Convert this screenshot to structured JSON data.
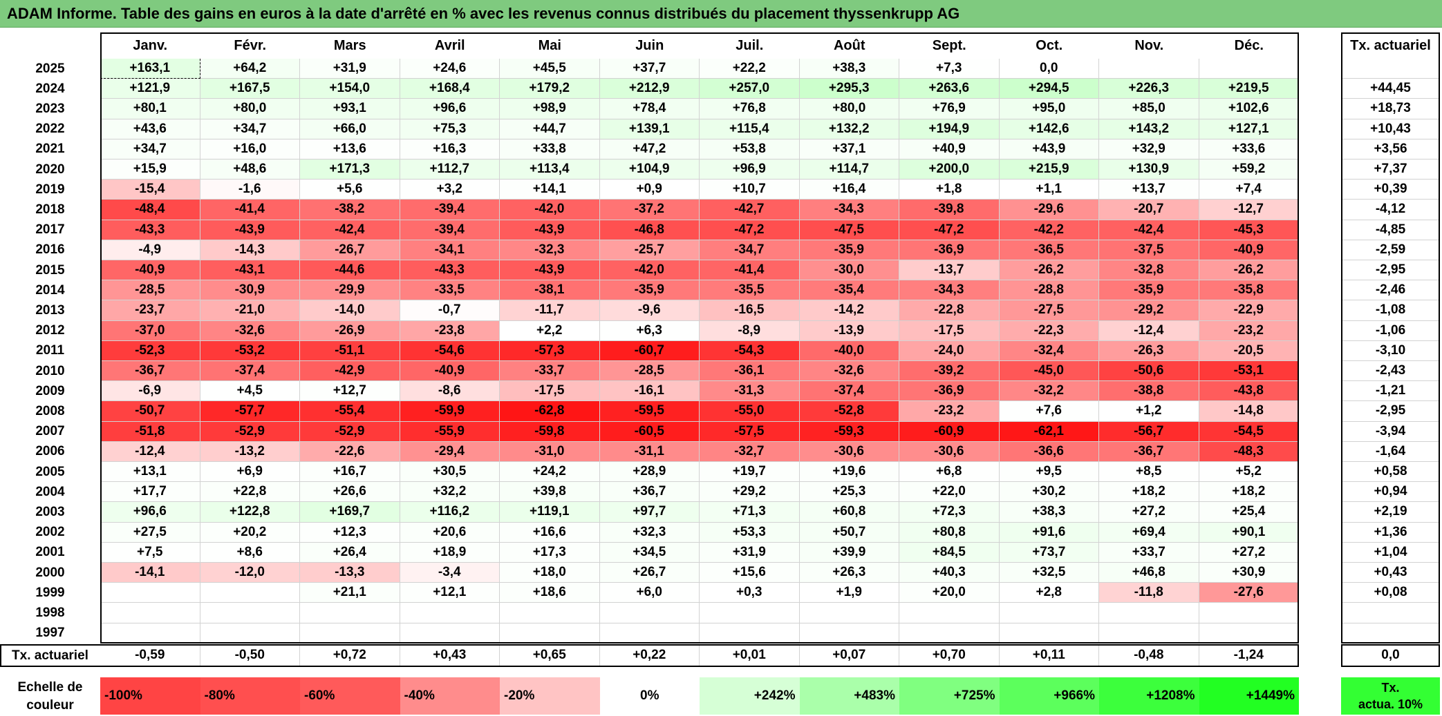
{
  "title": "ADAM Informe. Table des gains en euros à la date d'arrêté en % avec les revenus connus distribués du placement thyssenkrupp AG",
  "months": [
    "Janv.",
    "Févr.",
    "Mars",
    "Avril",
    "Mai",
    "Juin",
    "Juil.",
    "Août",
    "Sept.",
    "Oct.",
    "Nov.",
    "Déc."
  ],
  "tx_header": "Tx. actuariel",
  "rows": [
    {
      "year": "2025",
      "values": [
        "+163,1",
        "+64,2",
        "+31,9",
        "+24,6",
        "+45,5",
        "+37,7",
        "+22,2",
        "+38,3",
        "+7,3",
        "0,0",
        "",
        ""
      ],
      "tx": ""
    },
    {
      "year": "2024",
      "values": [
        "+121,9",
        "+167,5",
        "+154,0",
        "+168,4",
        "+179,2",
        "+212,9",
        "+257,0",
        "+295,3",
        "+263,6",
        "+294,5",
        "+226,3",
        "+219,5"
      ],
      "tx": "+44,45"
    },
    {
      "year": "2023",
      "values": [
        "+80,1",
        "+80,0",
        "+93,1",
        "+96,6",
        "+98,9",
        "+78,4",
        "+76,8",
        "+80,0",
        "+76,9",
        "+95,0",
        "+85,0",
        "+102,6"
      ],
      "tx": "+18,73"
    },
    {
      "year": "2022",
      "values": [
        "+43,6",
        "+34,7",
        "+66,0",
        "+75,3",
        "+44,7",
        "+139,1",
        "+115,4",
        "+132,2",
        "+194,9",
        "+142,6",
        "+143,2",
        "+127,1"
      ],
      "tx": "+10,43"
    },
    {
      "year": "2021",
      "values": [
        "+34,7",
        "+16,0",
        "+13,6",
        "+16,3",
        "+33,8",
        "+47,2",
        "+53,8",
        "+37,1",
        "+40,9",
        "+43,9",
        "+32,9",
        "+33,6"
      ],
      "tx": "+3,56"
    },
    {
      "year": "2020",
      "values": [
        "+15,9",
        "+48,6",
        "+171,3",
        "+112,7",
        "+113,4",
        "+104,9",
        "+96,9",
        "+114,7",
        "+200,0",
        "+215,9",
        "+130,9",
        "+59,2"
      ],
      "tx": "+7,37"
    },
    {
      "year": "2019",
      "values": [
        "-15,4",
        "-1,6",
        "+5,6",
        "+3,2",
        "+14,1",
        "+0,9",
        "+10,7",
        "+16,4",
        "+1,8",
        "+1,1",
        "+13,7",
        "+7,4"
      ],
      "tx": "+0,39"
    },
    {
      "year": "2018",
      "values": [
        "-48,4",
        "-41,4",
        "-38,2",
        "-39,4",
        "-42,0",
        "-37,2",
        "-42,7",
        "-34,3",
        "-39,8",
        "-29,6",
        "-20,7",
        "-12,7"
      ],
      "tx": "-4,12"
    },
    {
      "year": "2017",
      "values": [
        "-43,3",
        "-43,9",
        "-42,4",
        "-39,4",
        "-43,9",
        "-46,8",
        "-47,2",
        "-47,5",
        "-47,2",
        "-42,2",
        "-42,4",
        "-45,3"
      ],
      "tx": "-4,85"
    },
    {
      "year": "2016",
      "values": [
        "-4,9",
        "-14,3",
        "-26,7",
        "-34,1",
        "-32,3",
        "-25,7",
        "-34,7",
        "-35,9",
        "-36,9",
        "-36,5",
        "-37,5",
        "-40,9"
      ],
      "tx": "-2,59"
    },
    {
      "year": "2015",
      "values": [
        "-40,9",
        "-43,1",
        "-44,6",
        "-43,3",
        "-43,9",
        "-42,0",
        "-41,4",
        "-30,0",
        "-13,7",
        "-26,2",
        "-32,8",
        "-26,2"
      ],
      "tx": "-2,95"
    },
    {
      "year": "2014",
      "values": [
        "-28,5",
        "-30,9",
        "-29,9",
        "-33,5",
        "-38,1",
        "-35,9",
        "-35,5",
        "-35,4",
        "-34,3",
        "-28,8",
        "-35,9",
        "-35,8"
      ],
      "tx": "-2,46"
    },
    {
      "year": "2013",
      "values": [
        "-23,7",
        "-21,0",
        "-14,0",
        "-0,7",
        "-11,7",
        "-9,6",
        "-16,5",
        "-14,2",
        "-22,8",
        "-27,5",
        "-29,2",
        "-22,9"
      ],
      "tx": "-1,08"
    },
    {
      "year": "2012",
      "values": [
        "-37,0",
        "-32,6",
        "-26,9",
        "-23,8",
        "+2,2",
        "+6,3",
        "-8,9",
        "-13,9",
        "-17,5",
        "-22,3",
        "-12,4",
        "-23,2"
      ],
      "tx": "-1,06"
    },
    {
      "year": "2011",
      "values": [
        "-52,3",
        "-53,2",
        "-51,1",
        "-54,6",
        "-57,3",
        "-60,7",
        "-54,3",
        "-40,0",
        "-24,0",
        "-32,4",
        "-26,3",
        "-20,5"
      ],
      "tx": "-3,10"
    },
    {
      "year": "2010",
      "values": [
        "-36,7",
        "-37,4",
        "-42,9",
        "-40,9",
        "-33,7",
        "-28,5",
        "-36,1",
        "-32,6",
        "-39,2",
        "-45,0",
        "-50,6",
        "-53,1"
      ],
      "tx": "-2,43"
    },
    {
      "year": "2009",
      "values": [
        "-6,9",
        "+4,5",
        "+12,7",
        "-8,6",
        "-17,5",
        "-16,1",
        "-31,3",
        "-37,4",
        "-36,9",
        "-32,2",
        "-38,8",
        "-43,8"
      ],
      "tx": "-1,21"
    },
    {
      "year": "2008",
      "values": [
        "-50,7",
        "-57,7",
        "-55,4",
        "-59,9",
        "-62,8",
        "-59,5",
        "-55,0",
        "-52,8",
        "-23,2",
        "+7,6",
        "+1,2",
        "-14,8"
      ],
      "tx": "-2,95"
    },
    {
      "year": "2007",
      "values": [
        "-51,8",
        "-52,9",
        "-52,9",
        "-55,9",
        "-59,8",
        "-60,5",
        "-57,5",
        "-59,3",
        "-60,9",
        "-62,1",
        "-56,7",
        "-54,5"
      ],
      "tx": "-3,94"
    },
    {
      "year": "2006",
      "values": [
        "-12,4",
        "-13,2",
        "-22,6",
        "-29,4",
        "-31,0",
        "-31,1",
        "-32,7",
        "-30,6",
        "-30,6",
        "-36,6",
        "-36,7",
        "-48,3"
      ],
      "tx": "-1,64"
    },
    {
      "year": "2005",
      "values": [
        "+13,1",
        "+6,9",
        "+16,7",
        "+30,5",
        "+24,2",
        "+28,9",
        "+19,7",
        "+19,6",
        "+6,8",
        "+9,5",
        "+8,5",
        "+5,2"
      ],
      "tx": "+0,58"
    },
    {
      "year": "2004",
      "values": [
        "+17,7",
        "+22,8",
        "+26,6",
        "+32,2",
        "+39,8",
        "+36,7",
        "+29,2",
        "+25,3",
        "+22,0",
        "+30,2",
        "+18,2",
        "+18,2"
      ],
      "tx": "+0,94"
    },
    {
      "year": "2003",
      "values": [
        "+96,6",
        "+122,8",
        "+169,7",
        "+116,2",
        "+119,1",
        "+97,7",
        "+71,3",
        "+60,8",
        "+72,3",
        "+38,3",
        "+27,2",
        "+25,4"
      ],
      "tx": "+2,19"
    },
    {
      "year": "2002",
      "values": [
        "+27,5",
        "+20,2",
        "+12,3",
        "+20,6",
        "+16,6",
        "+32,3",
        "+53,3",
        "+50,7",
        "+80,8",
        "+91,6",
        "+69,4",
        "+90,1"
      ],
      "tx": "+1,36"
    },
    {
      "year": "2001",
      "values": [
        "+7,5",
        "+8,6",
        "+26,4",
        "+18,9",
        "+17,3",
        "+34,5",
        "+31,9",
        "+39,9",
        "+84,5",
        "+73,7",
        "+33,7",
        "+27,2"
      ],
      "tx": "+1,04"
    },
    {
      "year": "2000",
      "values": [
        "-14,1",
        "-12,0",
        "-13,3",
        "-3,4",
        "+18,0",
        "+26,7",
        "+15,6",
        "+26,3",
        "+40,3",
        "+32,5",
        "+46,8",
        "+30,9"
      ],
      "tx": "+0,43"
    },
    {
      "year": "1999",
      "values": [
        "",
        "",
        "+21,1",
        "+12,1",
        "+18,6",
        "+6,0",
        "+0,3",
        "+1,9",
        "+20,0",
        "+2,8",
        "-11,8",
        "-27,6"
      ],
      "tx": "+0,08"
    },
    {
      "year": "1998",
      "values": [
        "",
        "",
        "",
        "",
        "",
        "",
        "",
        "",
        "",
        "",
        "",
        ""
      ],
      "tx": ""
    },
    {
      "year": "1997",
      "values": [
        "",
        "",
        "",
        "",
        "",
        "",
        "",
        "",
        "",
        "",
        "",
        ""
      ],
      "tx": ""
    }
  ],
  "footer": {
    "label": "Tx. actuariel",
    "values": [
      "-0,59",
      "-0,50",
      "+0,72",
      "+0,43",
      "+0,65",
      "+0,22",
      "+0,01",
      "+0,07",
      "+0,70",
      "+0,11",
      "-0,48",
      "-1,24"
    ],
    "tx": "0,0"
  },
  "scale": {
    "label_line1": "Echelle de",
    "label_line2": "couleur",
    "items": [
      {
        "label": "-100%",
        "color": "#ff4444",
        "align": "left"
      },
      {
        "label": "-80%",
        "color": "#ff4f4f",
        "align": "left"
      },
      {
        "label": "-60%",
        "color": "#ff5a5a",
        "align": "left"
      },
      {
        "label": "-40%",
        "color": "#ff8c8c",
        "align": "left"
      },
      {
        "label": "-20%",
        "color": "#ffc4c4",
        "align": "left"
      },
      {
        "label": "0%",
        "color": "#ffffff",
        "align": "center"
      },
      {
        "label": "+242%",
        "color": "#d6ffd6",
        "align": "right"
      },
      {
        "label": "+483%",
        "color": "#aaffaa",
        "align": "right"
      },
      {
        "label": "+725%",
        "color": "#80ff80",
        "align": "right"
      },
      {
        "label": "+966%",
        "color": "#5cff5c",
        "align": "right"
      },
      {
        "label": "+1208%",
        "color": "#3cff3c",
        "align": "right"
      },
      {
        "label": "+1449%",
        "color": "#22ff22",
        "align": "right"
      }
    ],
    "note_line1": "Tx.",
    "note_line2": "actua. 10%",
    "note_color": "#33ff33"
  }
}
